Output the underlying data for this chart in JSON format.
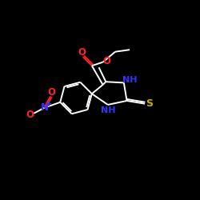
{
  "background_color": "#000000",
  "bond_color": "#ffffff",
  "O_color": "#ff2222",
  "N_color": "#3333ff",
  "S_color": "#ccaa00",
  "figsize": [
    2.5,
    2.5
  ],
  "dpi": 100,
  "xlim": [
    0,
    10
  ],
  "ylim": [
    0,
    10
  ]
}
